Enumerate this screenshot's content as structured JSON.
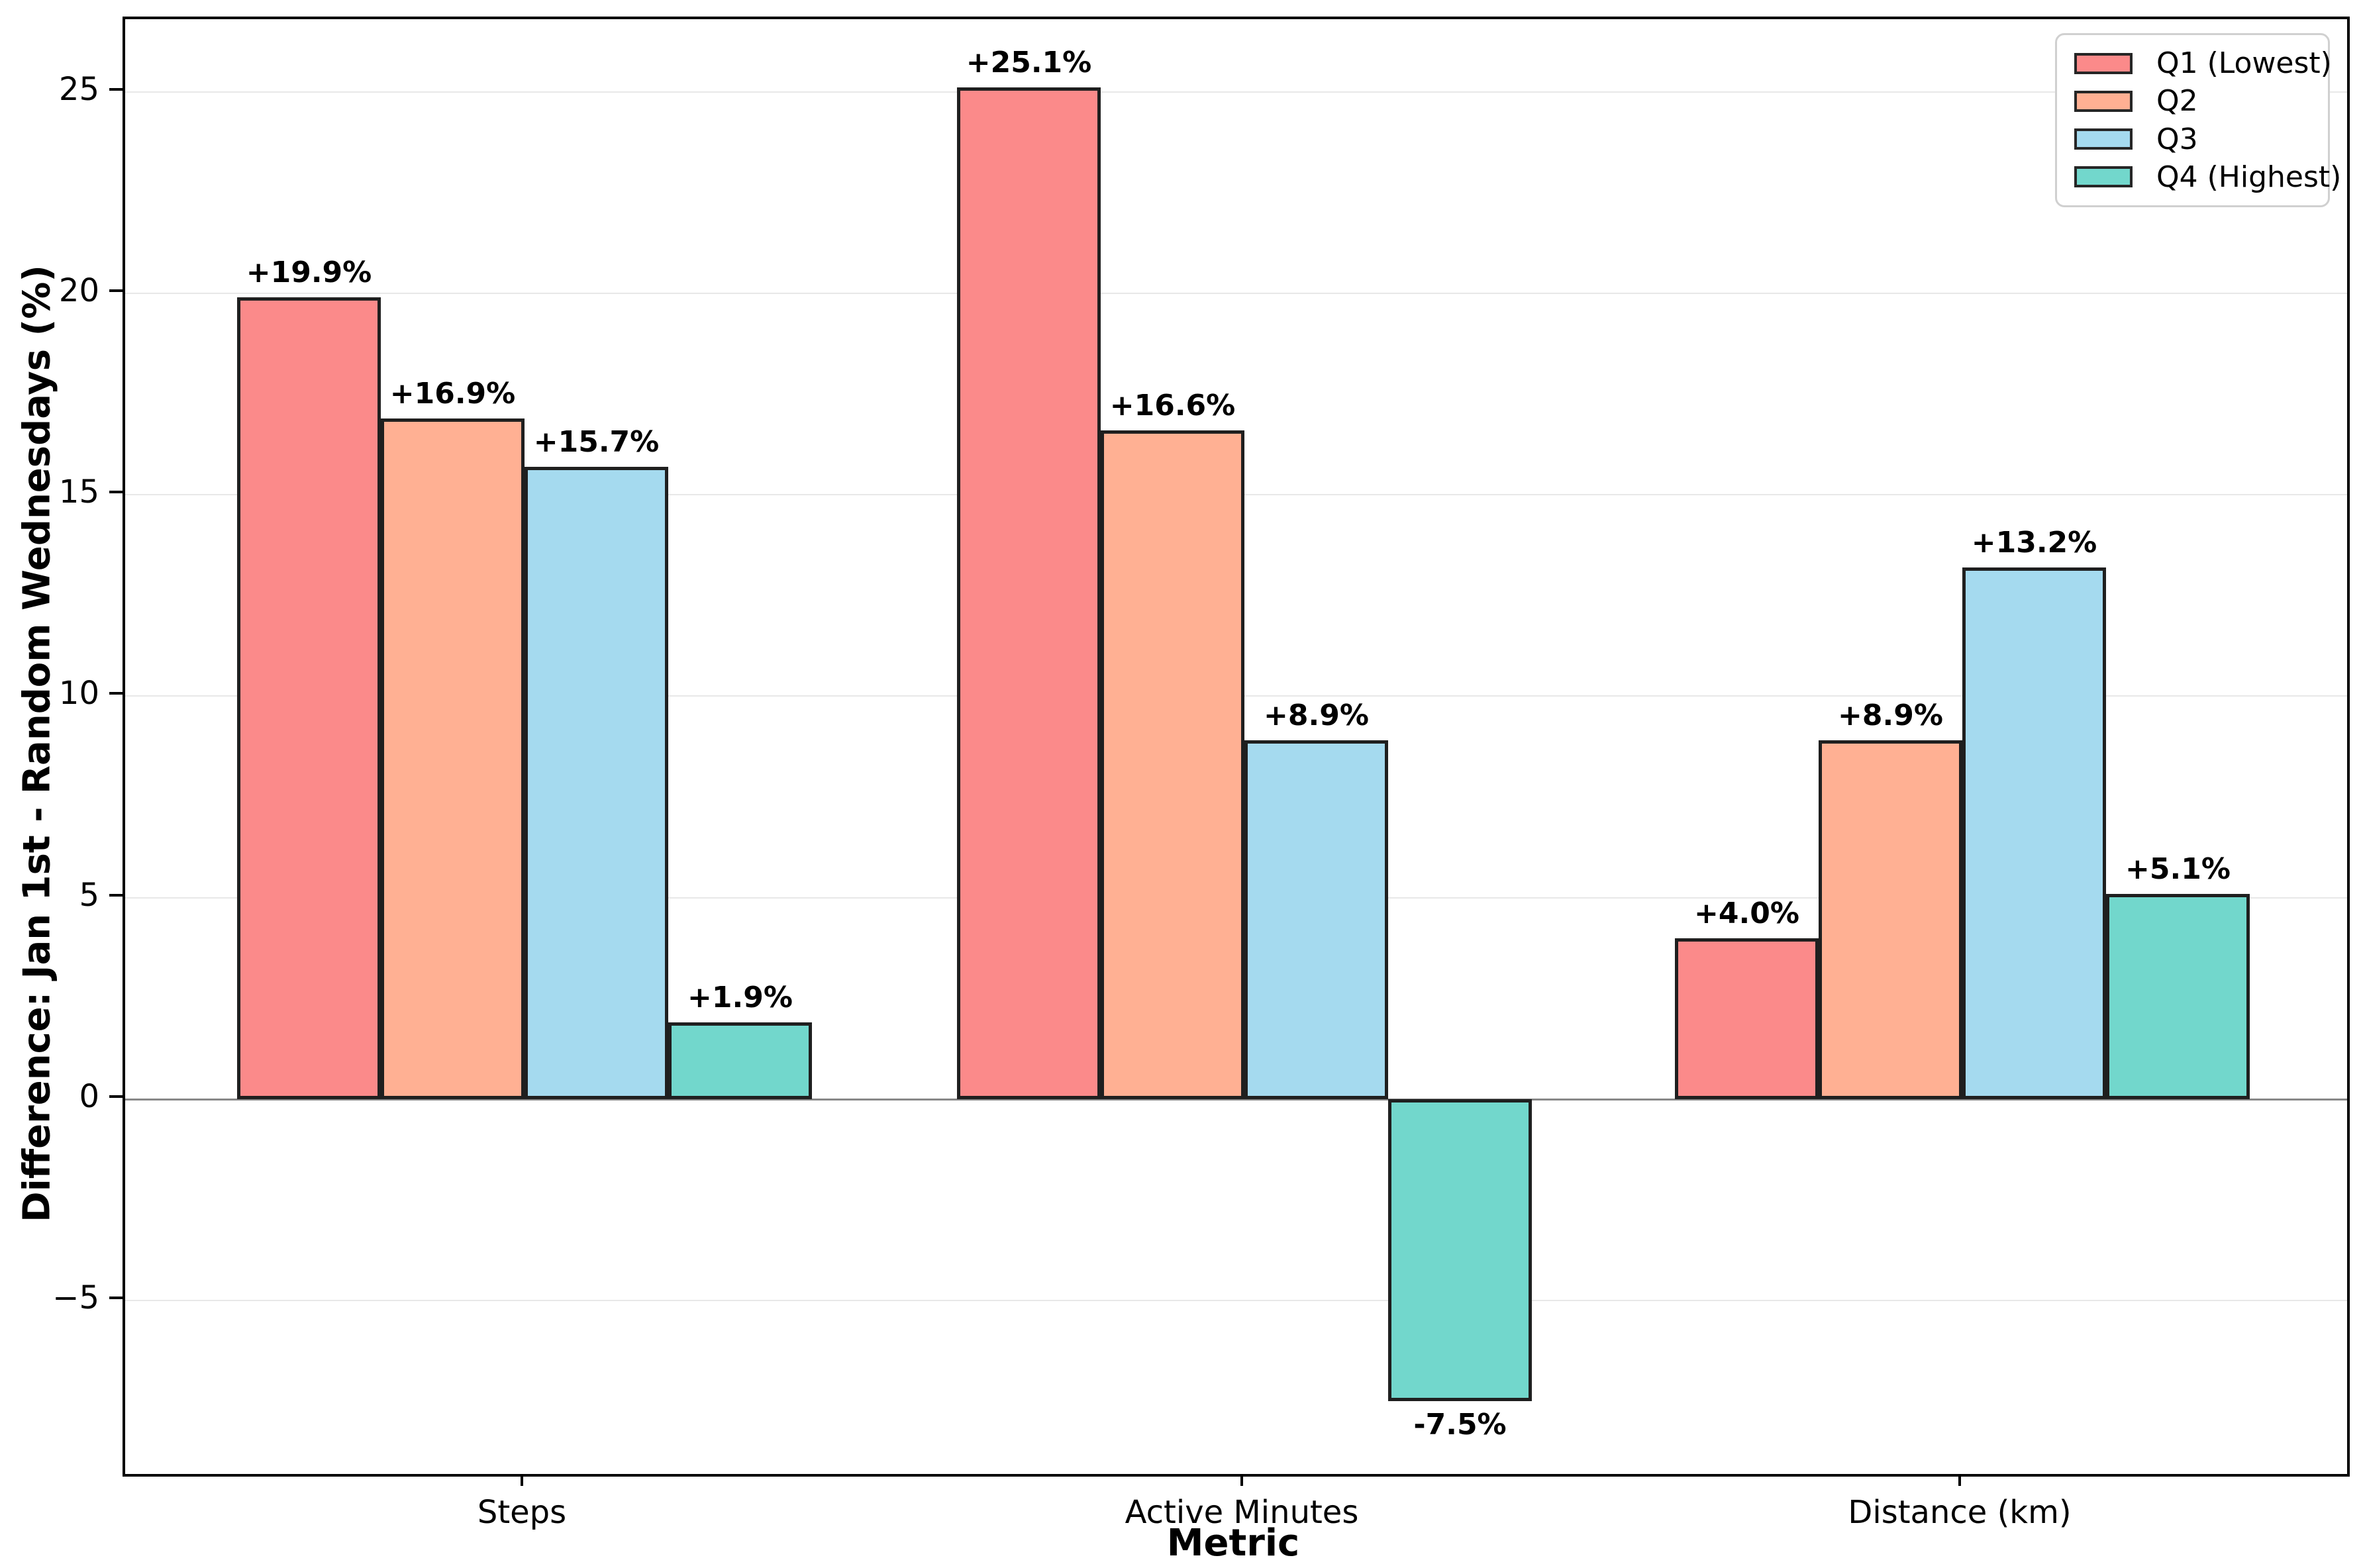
{
  "chart_data": {
    "type": "bar",
    "xlabel": "Metric",
    "ylabel": "Difference: Jan 1st - Random Wednesdays (%)",
    "categories": [
      "Steps",
      "Active Minutes",
      "Distance (km)"
    ],
    "series": [
      {
        "name": "Q1 (Lowest)",
        "color": "#fb8a8a",
        "values": [
          19.9,
          25.1,
          4.0
        ],
        "labels": [
          "+19.9%",
          "+25.1%",
          "+4.0%"
        ]
      },
      {
        "name": "Q2",
        "color": "#ffb093",
        "values": [
          16.9,
          16.6,
          8.9
        ],
        "labels": [
          "+16.9%",
          "+16.6%",
          "+8.9%"
        ]
      },
      {
        "name": "Q3",
        "color": "#a5daef",
        "values": [
          15.7,
          8.9,
          13.2
        ],
        "labels": [
          "+15.7%",
          "+8.9%",
          "+13.2%"
        ]
      },
      {
        "name": "Q4 (Highest)",
        "color": "#72d7cc",
        "values": [
          1.9,
          -7.5,
          5.1
        ],
        "labels": [
          "+1.9%",
          "-7.5%",
          "+5.1%"
        ]
      }
    ],
    "yticks": [
      {
        "value": 25,
        "label": "25"
      },
      {
        "value": 20,
        "label": "20"
      },
      {
        "value": 15,
        "label": "15"
      },
      {
        "value": 10,
        "label": "10"
      },
      {
        "value": 5,
        "label": "5"
      },
      {
        "value": 0,
        "label": "0"
      },
      {
        "value": -5,
        "label": "−5"
      }
    ],
    "ylim": [
      -9.3,
      26.8
    ],
    "grid": true,
    "grid_color": "#e8e8e8",
    "zero_line_color": "#888888",
    "bar_edge_color": "#1f1f1f",
    "legend_position": "top-right"
  }
}
